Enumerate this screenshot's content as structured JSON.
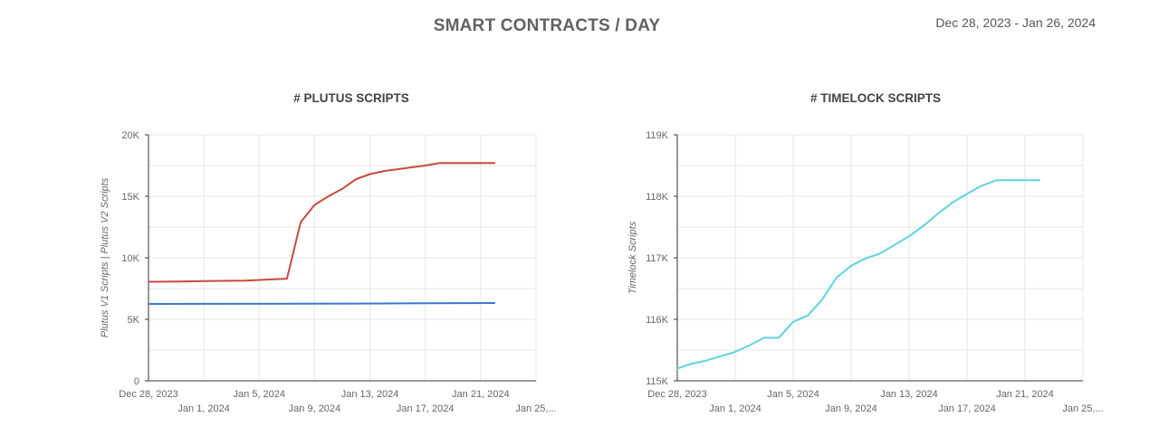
{
  "header": {
    "title": "SMART CONTRACTS / DAY",
    "date_range": "Dec 28, 2023 - Jan 26, 2024"
  },
  "chart_data": [
    {
      "type": "line",
      "title": "# PLUTUS SCRIPTS",
      "ylabel": "Plutus V1 Scripts | Plutus V2 Scripts",
      "xlabel": "",
      "ylim": [
        0,
        20000
      ],
      "yticks": [
        0,
        5000,
        10000,
        15000,
        20000
      ],
      "ytick_labels": [
        "0",
        "5K",
        "10K",
        "15K",
        "20K"
      ],
      "xticks": [
        0,
        4,
        8,
        12,
        16,
        20,
        24,
        28
      ],
      "xtick_labels": [
        "Dec 28, 2023",
        "Jan 1, 2024",
        "Jan 5, 2024",
        "Jan 9, 2024",
        "Jan 13, 2024",
        "Jan 17, 2024",
        "Jan 21, 2024",
        "Jan 25,..."
      ],
      "xlim": [
        0,
        28
      ],
      "grid": true,
      "series": [
        {
          "color": "#c64a3c",
          "x": [
            0,
            2,
            4,
            6,
            7,
            8,
            9,
            10,
            11,
            12,
            13,
            14,
            15,
            16,
            17,
            18,
            19,
            20,
            21,
            22,
            23,
            24,
            25
          ],
          "values": [
            8050,
            8070,
            8100,
            8130,
            8150,
            8200,
            8250,
            8300,
            12900,
            14300,
            15000,
            15600,
            16400,
            16800,
            17050,
            17200,
            17350,
            17500,
            17700,
            17700,
            17700,
            17700,
            17700
          ]
        },
        {
          "color": "#3a78cc",
          "x": [
            0,
            5,
            10,
            15,
            20,
            25
          ],
          "values": [
            6250,
            6260,
            6270,
            6280,
            6300,
            6320
          ]
        }
      ]
    },
    {
      "type": "line",
      "title": "# TIMELOCK SCRIPTS",
      "ylabel": "Timelock Scripts",
      "xlabel": "",
      "ylim": [
        115000,
        119000
      ],
      "yticks": [
        115000,
        116000,
        117000,
        118000,
        119000
      ],
      "ytick_labels": [
        "115K",
        "116K",
        "117K",
        "118K",
        "119K"
      ],
      "xticks": [
        0,
        4,
        8,
        12,
        16,
        20,
        24,
        28
      ],
      "xtick_labels": [
        "Dec 28, 2023",
        "Jan 1, 2024",
        "Jan 5, 2024",
        "Jan 9, 2024",
        "Jan 13, 2024",
        "Jan 17, 2024",
        "Jan 21, 2024",
        "Jan 25,..."
      ],
      "xlim": [
        0,
        28
      ],
      "grid": true,
      "series": [
        {
          "color": "#5dd4dd",
          "x": [
            0,
            1,
            2,
            3,
            4,
            5,
            6,
            7,
            8,
            9,
            10,
            11,
            12,
            13,
            14,
            15,
            16,
            17,
            18,
            19,
            20,
            21,
            22,
            23,
            24,
            25
          ],
          "values": [
            115200,
            115280,
            115330,
            115400,
            115470,
            115580,
            115700,
            115700,
            115960,
            116060,
            116320,
            116680,
            116870,
            116990,
            117070,
            117210,
            117350,
            117520,
            117720,
            117900,
            118040,
            118170,
            118260,
            118260,
            118260,
            118260
          ]
        }
      ]
    }
  ]
}
